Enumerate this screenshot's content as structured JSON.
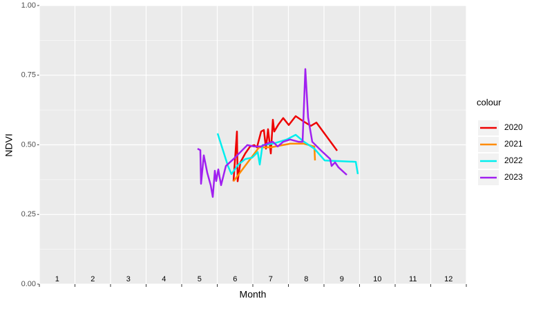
{
  "chart_data": {
    "type": "line",
    "x_label": "Month",
    "y_label": "NDVI",
    "legend_title": "colour",
    "legend": "right",
    "grid": true,
    "categories": [
      "1",
      "2",
      "3",
      "4",
      "5",
      "6",
      "7",
      "8",
      "9",
      "10",
      "11",
      "12"
    ],
    "xlim": [
      1,
      13
    ],
    "xticks": [
      1,
      2,
      3,
      4,
      5,
      6,
      7,
      8,
      9,
      10,
      11,
      12,
      13
    ],
    "ylim": [
      0,
      1
    ],
    "yticks": [
      {
        "value": 0,
        "label": "0.00"
      },
      {
        "value": 0.25,
        "label": "0.25"
      },
      {
        "value": 0.5,
        "label": "0.50"
      },
      {
        "value": 0.75,
        "label": "0.75"
      },
      {
        "value": 1,
        "label": "1.00"
      }
    ],
    "series": [
      {
        "name": "2020",
        "color": "#ee0000",
        "x": [
          6.456,
          6.553,
          6.573,
          6.65,
          6.786,
          6.922,
          7.039,
          7.117,
          7.233,
          7.311,
          7.369,
          7.427,
          7.505,
          7.563,
          7.602,
          7.718,
          7.854,
          8.01,
          8.204,
          8.437,
          8.631,
          8.786,
          9.369
        ],
        "values": [
          0.369,
          0.548,
          0.369,
          0.437,
          0.469,
          0.494,
          0.499,
          0.491,
          0.548,
          0.553,
          0.486,
          0.556,
          0.469,
          0.59,
          0.548,
          0.573,
          0.596,
          0.571,
          0.603,
          0.583,
          0.568,
          0.58,
          0.479
        ]
      },
      {
        "name": "2021",
        "color": "#ff8c00",
        "x": [
          6.456,
          7.175,
          7.505,
          8.049,
          8.437,
          8.728,
          8.748
        ],
        "values": [
          0.369,
          0.491,
          0.491,
          0.504,
          0.504,
          0.494,
          0.444
        ]
      },
      {
        "name": "2022",
        "color": "#00eeee",
        "x": [
          6.01,
          6.301,
          6.398,
          6.592,
          6.786,
          6.981,
          7.136,
          7.194,
          7.272,
          7.563,
          7.951,
          8.204,
          8.437,
          8.728,
          9.019,
          9.893,
          9.951
        ],
        "values": [
          0.541,
          0.424,
          0.395,
          0.429,
          0.449,
          0.454,
          0.474,
          0.429,
          0.499,
          0.504,
          0.519,
          0.536,
          0.511,
          0.486,
          0.444,
          0.439,
          0.395
        ]
      },
      {
        "name": "2023",
        "color": "#a020f0",
        "x": [
          5.447,
          5.524,
          5.544,
          5.621,
          5.718,
          5.816,
          5.874,
          5.932,
          5.971,
          6.029,
          6.107,
          6.243,
          6.456,
          6.65,
          6.845,
          7.039,
          7.233,
          7.427,
          7.563,
          7.699,
          7.854,
          8.049,
          8.282,
          8.398,
          8.476,
          8.553,
          8.67,
          8.922,
          9.175,
          9.214,
          9.311,
          9.408,
          9.641
        ],
        "values": [
          0.486,
          0.481,
          0.36,
          0.462,
          0.4,
          0.355,
          0.313,
          0.407,
          0.37,
          0.412,
          0.355,
          0.424,
          0.449,
          0.474,
          0.499,
          0.494,
          0.494,
          0.506,
          0.511,
          0.494,
          0.511,
          0.519,
          0.511,
          0.511,
          0.772,
          0.598,
          0.511,
          0.479,
          0.449,
          0.424,
          0.437,
          0.419,
          0.392
        ]
      }
    ]
  }
}
